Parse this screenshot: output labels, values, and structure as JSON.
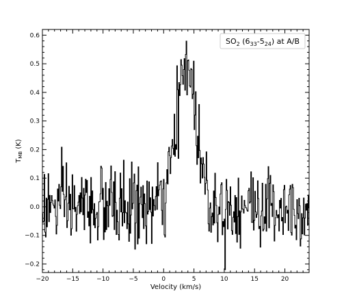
{
  "chart_data": {
    "type": "line",
    "title": "",
    "xlabel": "Velocity (km/s)",
    "ylabel_main": "T",
    "ylabel_sub": "MB",
    "ylabel_unit": " (K)",
    "xlim": [
      -20,
      24
    ],
    "ylim": [
      -0.23,
      0.62
    ],
    "x_ticks": [
      -20,
      -15,
      -10,
      -5,
      0,
      5,
      10,
      15,
      20
    ],
    "x_tick_labels": [
      "−20",
      "−15",
      "−10",
      "−5",
      "0",
      "5",
      "10",
      "15",
      "20"
    ],
    "y_ticks": [
      -0.2,
      -0.1,
      0.0,
      0.1,
      0.2,
      0.3,
      0.4,
      0.5,
      0.6
    ],
    "y_tick_labels": [
      "−0.2",
      "−0.1",
      "0.0",
      "0.1",
      "0.2",
      "0.3",
      "0.4",
      "0.5",
      "0.6"
    ],
    "grid": false,
    "legend_placement": "top-right",
    "legend": {
      "name": "SO",
      "sub1": "2",
      "mid": " (6",
      "sub2": "33",
      "dash": "-5",
      "sub3": "24",
      "tail": ") at A/B"
    },
    "series": [
      {
        "line_color": "#000000",
        "peak_velocity": 3.8,
        "peak_width": 1.6,
        "peak_amplitude": 0.5,
        "channel_width": 0.11,
        "noise_rms": 0.07
      }
    ]
  }
}
